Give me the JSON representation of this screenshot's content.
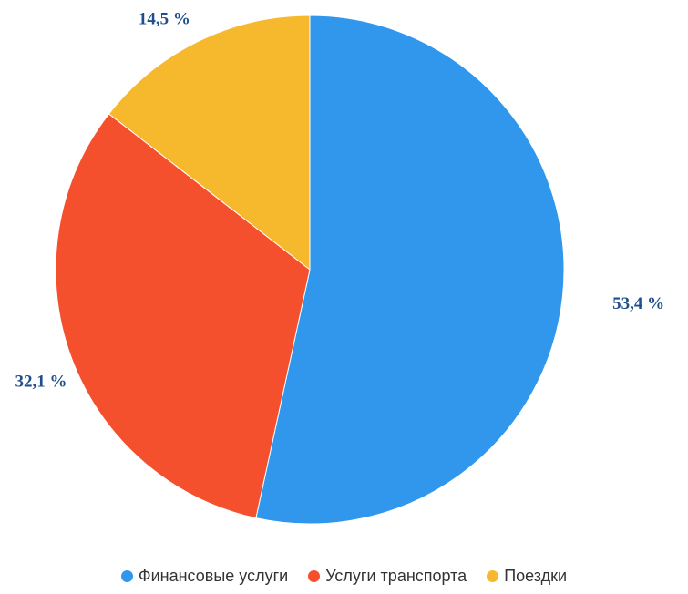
{
  "chart_data": {
    "type": "pie",
    "categories": [
      "Финансовые услуги",
      "Услуги транспорта",
      "Поездки"
    ],
    "values": [
      53.4,
      32.1,
      14.5
    ],
    "value_labels": [
      "53,4 %",
      "32,1 %",
      "14,5 %"
    ],
    "colors": [
      "#3097ec",
      "#f5502d",
      "#f6b92e"
    ],
    "legend": "bottom"
  }
}
